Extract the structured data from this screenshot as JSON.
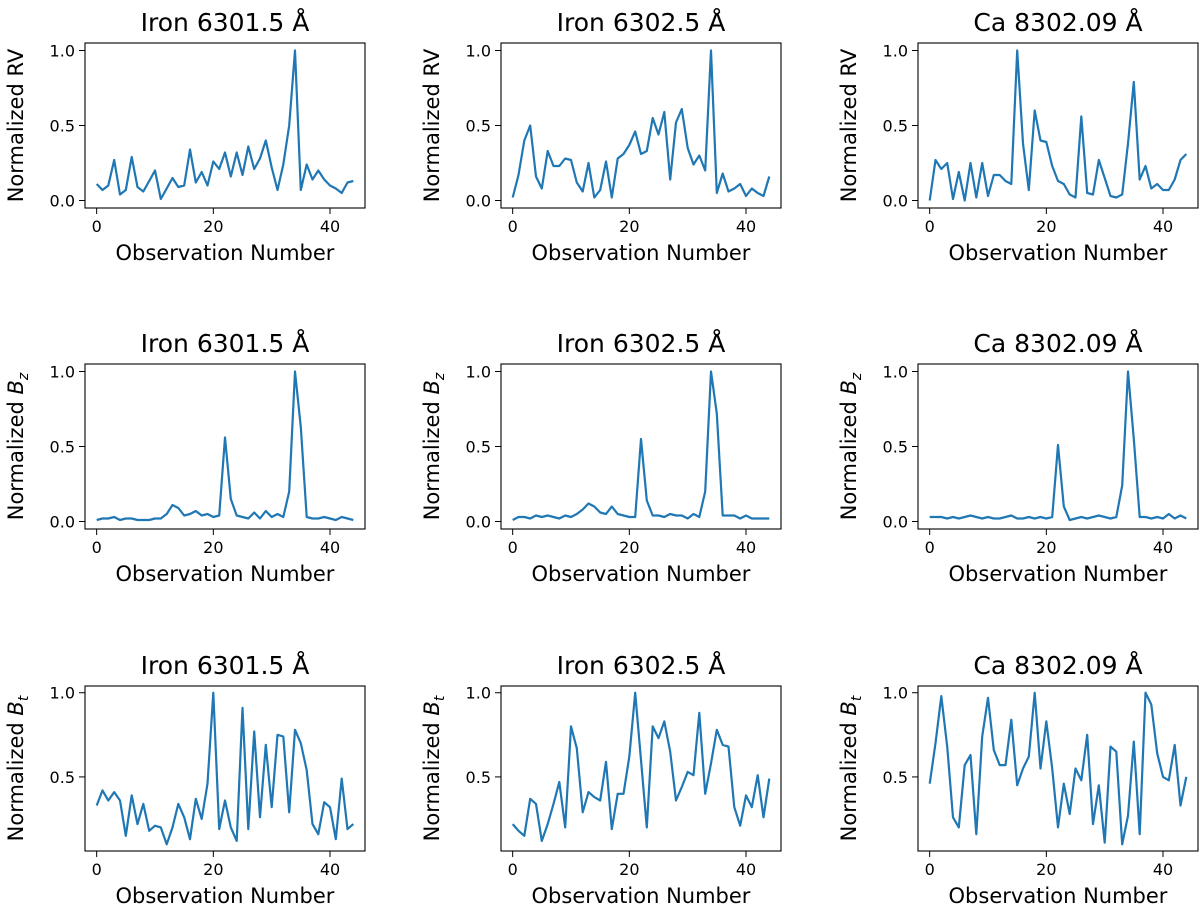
{
  "figure": {
    "line_color": "#1f77b4",
    "x_label": "Observation Number",
    "row_ylabels": [
      {
        "prefix": "Normalized ",
        "symbol": "",
        "sub": "",
        "plain": "RV"
      },
      {
        "prefix": "Normalized ",
        "symbol": "B",
        "sub": "z",
        "plain": ""
      },
      {
        "prefix": "Normalized ",
        "symbol": "B",
        "sub": "t",
        "plain": ""
      }
    ]
  },
  "chart_data": [
    {
      "type": "line",
      "title": "Iron 6301.5 Å",
      "xlabel": "Observation Number",
      "ylabel": "Normalized RV",
      "xlim": [
        -2,
        46
      ],
      "ylim": [
        -0.05,
        1.05
      ],
      "xticks": [
        0,
        20,
        40
      ],
      "yticks": [
        0.0,
        0.5,
        1.0
      ],
      "ytick_labels": [
        "0.0",
        "0.5",
        "1.0"
      ],
      "x": [
        0,
        1,
        2,
        3,
        4,
        5,
        6,
        7,
        8,
        9,
        10,
        11,
        12,
        13,
        14,
        15,
        16,
        17,
        18,
        19,
        20,
        21,
        22,
        23,
        24,
        25,
        26,
        27,
        28,
        29,
        30,
        31,
        32,
        33,
        34,
        35,
        36,
        37,
        38,
        39,
        40,
        41,
        42,
        43,
        44
      ],
      "values": [
        0.11,
        0.07,
        0.1,
        0.27,
        0.04,
        0.07,
        0.29,
        0.09,
        0.06,
        0.13,
        0.2,
        0.01,
        0.08,
        0.15,
        0.09,
        0.1,
        0.34,
        0.12,
        0.19,
        0.1,
        0.26,
        0.21,
        0.32,
        0.16,
        0.32,
        0.17,
        0.36,
        0.21,
        0.28,
        0.4,
        0.22,
        0.07,
        0.24,
        0.5,
        1.0,
        0.07,
        0.24,
        0.14,
        0.2,
        0.14,
        0.1,
        0.08,
        0.05,
        0.12,
        0.13
      ]
    },
    {
      "type": "line",
      "title": "Iron 6302.5 Å",
      "xlabel": "Observation Number",
      "ylabel": "Normalized RV",
      "xlim": [
        -2,
        46
      ],
      "ylim": [
        -0.05,
        1.05
      ],
      "xticks": [
        0,
        20,
        40
      ],
      "yticks": [
        0.0,
        0.5,
        1.0
      ],
      "ytick_labels": [
        "0.0",
        "0.5",
        "1.0"
      ],
      "x": [
        0,
        1,
        2,
        3,
        4,
        5,
        6,
        7,
        8,
        9,
        10,
        11,
        12,
        13,
        14,
        15,
        16,
        17,
        18,
        19,
        20,
        21,
        22,
        23,
        24,
        25,
        26,
        27,
        28,
        29,
        30,
        31,
        32,
        33,
        34,
        35,
        36,
        37,
        38,
        39,
        40,
        41,
        42,
        43,
        44
      ],
      "values": [
        0.02,
        0.17,
        0.4,
        0.5,
        0.16,
        0.08,
        0.33,
        0.23,
        0.23,
        0.28,
        0.27,
        0.12,
        0.06,
        0.25,
        0.02,
        0.07,
        0.26,
        0.02,
        0.28,
        0.31,
        0.37,
        0.46,
        0.31,
        0.33,
        0.55,
        0.44,
        0.59,
        0.14,
        0.52,
        0.61,
        0.35,
        0.24,
        0.3,
        0.2,
        1.0,
        0.05,
        0.18,
        0.06,
        0.08,
        0.11,
        0.03,
        0.08,
        0.05,
        0.03,
        0.16
      ]
    },
    {
      "type": "line",
      "title": "Ca 8302.09 Å",
      "xlabel": "Observation Number",
      "ylabel": "Normalized RV",
      "xlim": [
        -2,
        46
      ],
      "ylim": [
        -0.05,
        1.05
      ],
      "xticks": [
        0,
        20,
        40
      ],
      "yticks": [
        0.0,
        0.5,
        1.0
      ],
      "ytick_labels": [
        "0.0",
        "0.5",
        "1.0"
      ],
      "x": [
        0,
        1,
        2,
        3,
        4,
        5,
        6,
        7,
        8,
        9,
        10,
        11,
        12,
        13,
        14,
        15,
        16,
        17,
        18,
        19,
        20,
        21,
        22,
        23,
        24,
        25,
        26,
        27,
        28,
        29,
        30,
        31,
        32,
        33,
        34,
        35,
        36,
        37,
        38,
        39,
        40,
        41,
        42,
        43,
        44
      ],
      "values": [
        0.0,
        0.27,
        0.21,
        0.25,
        0.01,
        0.19,
        0.0,
        0.25,
        0.02,
        0.25,
        0.03,
        0.17,
        0.17,
        0.13,
        0.11,
        1.0,
        0.38,
        0.07,
        0.6,
        0.4,
        0.39,
        0.23,
        0.13,
        0.11,
        0.04,
        0.02,
        0.56,
        0.05,
        0.04,
        0.27,
        0.15,
        0.03,
        0.02,
        0.04,
        0.38,
        0.79,
        0.14,
        0.23,
        0.08,
        0.11,
        0.07,
        0.07,
        0.14,
        0.27,
        0.31
      ]
    },
    {
      "type": "line",
      "title": "Iron 6301.5 Å",
      "xlabel": "Observation Number",
      "ylabel": "Normalized Bz",
      "xlim": [
        -2,
        46
      ],
      "ylim": [
        -0.05,
        1.05
      ],
      "xticks": [
        0,
        20,
        40
      ],
      "yticks": [
        0.0,
        0.5,
        1.0
      ],
      "ytick_labels": [
        "0.0",
        "0.5",
        "1.0"
      ],
      "x": [
        0,
        1,
        2,
        3,
        4,
        5,
        6,
        7,
        8,
        9,
        10,
        11,
        12,
        13,
        14,
        15,
        16,
        17,
        18,
        19,
        20,
        21,
        22,
        23,
        24,
        25,
        26,
        27,
        28,
        29,
        30,
        31,
        32,
        33,
        34,
        35,
        36,
        37,
        38,
        39,
        40,
        41,
        42,
        43,
        44
      ],
      "values": [
        0.01,
        0.02,
        0.02,
        0.03,
        0.01,
        0.02,
        0.02,
        0.01,
        0.01,
        0.01,
        0.02,
        0.02,
        0.05,
        0.11,
        0.09,
        0.04,
        0.05,
        0.07,
        0.04,
        0.05,
        0.03,
        0.04,
        0.56,
        0.15,
        0.04,
        0.03,
        0.02,
        0.06,
        0.02,
        0.07,
        0.03,
        0.05,
        0.03,
        0.2,
        1.0,
        0.63,
        0.03,
        0.02,
        0.02,
        0.03,
        0.02,
        0.01,
        0.03,
        0.02,
        0.01
      ]
    },
    {
      "type": "line",
      "title": "Iron 6302.5 Å",
      "xlabel": "Observation Number",
      "ylabel": "Normalized Bz",
      "xlim": [
        -2,
        46
      ],
      "ylim": [
        -0.05,
        1.05
      ],
      "xticks": [
        0,
        20,
        40
      ],
      "yticks": [
        0.0,
        0.5,
        1.0
      ],
      "ytick_labels": [
        "0.0",
        "0.5",
        "1.0"
      ],
      "x": [
        0,
        1,
        2,
        3,
        4,
        5,
        6,
        7,
        8,
        9,
        10,
        11,
        12,
        13,
        14,
        15,
        16,
        17,
        18,
        19,
        20,
        21,
        22,
        23,
        24,
        25,
        26,
        27,
        28,
        29,
        30,
        31,
        32,
        33,
        34,
        35,
        36,
        37,
        38,
        39,
        40,
        41,
        42,
        43,
        44
      ],
      "values": [
        0.01,
        0.03,
        0.03,
        0.02,
        0.04,
        0.03,
        0.04,
        0.03,
        0.02,
        0.04,
        0.03,
        0.05,
        0.08,
        0.12,
        0.1,
        0.06,
        0.05,
        0.1,
        0.05,
        0.04,
        0.03,
        0.03,
        0.55,
        0.14,
        0.04,
        0.04,
        0.03,
        0.05,
        0.04,
        0.04,
        0.02,
        0.05,
        0.03,
        0.2,
        1.0,
        0.72,
        0.04,
        0.04,
        0.04,
        0.02,
        0.04,
        0.02,
        0.02,
        0.02,
        0.02
      ]
    },
    {
      "type": "line",
      "title": "Ca 8302.09 Å",
      "xlabel": "Observation Number",
      "ylabel": "Normalized Bz",
      "xlim": [
        -2,
        46
      ],
      "ylim": [
        -0.05,
        1.05
      ],
      "xticks": [
        0,
        20,
        40
      ],
      "yticks": [
        0.0,
        0.5,
        1.0
      ],
      "ytick_labels": [
        "0.0",
        "0.5",
        "1.0"
      ],
      "x": [
        0,
        1,
        2,
        3,
        4,
        5,
        6,
        7,
        8,
        9,
        10,
        11,
        12,
        13,
        14,
        15,
        16,
        17,
        18,
        19,
        20,
        21,
        22,
        23,
        24,
        25,
        26,
        27,
        28,
        29,
        30,
        31,
        32,
        33,
        34,
        35,
        36,
        37,
        38,
        39,
        40,
        41,
        42,
        43,
        44
      ],
      "values": [
        0.03,
        0.03,
        0.03,
        0.02,
        0.03,
        0.02,
        0.03,
        0.04,
        0.03,
        0.02,
        0.03,
        0.02,
        0.02,
        0.03,
        0.04,
        0.02,
        0.02,
        0.03,
        0.02,
        0.03,
        0.02,
        0.03,
        0.51,
        0.1,
        0.01,
        0.02,
        0.03,
        0.02,
        0.03,
        0.04,
        0.03,
        0.02,
        0.03,
        0.24,
        1.0,
        0.55,
        0.03,
        0.03,
        0.02,
        0.03,
        0.02,
        0.05,
        0.02,
        0.04,
        0.02
      ]
    },
    {
      "type": "line",
      "title": "Iron 6301.5 Å",
      "xlabel": "Observation Number",
      "ylabel": "Normalized Bt",
      "xlim": [
        -2,
        46
      ],
      "ylim": [
        0.06,
        1.04
      ],
      "xticks": [
        0,
        20,
        40
      ],
      "yticks": [
        0.5,
        1.0
      ],
      "ytick_labels": [
        "0.5",
        "1.0"
      ],
      "x": [
        0,
        1,
        2,
        3,
        4,
        5,
        6,
        7,
        8,
        9,
        10,
        11,
        12,
        13,
        14,
        15,
        16,
        17,
        18,
        19,
        20,
        21,
        22,
        23,
        24,
        25,
        26,
        27,
        28,
        29,
        30,
        31,
        32,
        33,
        34,
        35,
        36,
        37,
        38,
        39,
        40,
        41,
        42,
        43,
        44
      ],
      "values": [
        0.33,
        0.42,
        0.36,
        0.41,
        0.36,
        0.15,
        0.39,
        0.22,
        0.34,
        0.18,
        0.21,
        0.2,
        0.1,
        0.2,
        0.34,
        0.26,
        0.13,
        0.37,
        0.25,
        0.46,
        1.0,
        0.19,
        0.36,
        0.2,
        0.12,
        0.91,
        0.19,
        0.77,
        0.26,
        0.69,
        0.32,
        0.75,
        0.74,
        0.29,
        0.78,
        0.7,
        0.54,
        0.22,
        0.16,
        0.35,
        0.32,
        0.13,
        0.49,
        0.19,
        0.22
      ]
    },
    {
      "type": "line",
      "title": "Iron 6302.5 Å",
      "xlabel": "Observation Number",
      "ylabel": "Normalized Bt",
      "xlim": [
        -2,
        46
      ],
      "ylim": [
        0.06,
        1.04
      ],
      "xticks": [
        0,
        20,
        40
      ],
      "yticks": [
        0.5,
        1.0
      ],
      "ytick_labels": [
        "0.5",
        "1.0"
      ],
      "x": [
        0,
        1,
        2,
        3,
        4,
        5,
        6,
        7,
        8,
        9,
        10,
        11,
        12,
        13,
        14,
        15,
        16,
        17,
        18,
        19,
        20,
        21,
        22,
        23,
        24,
        25,
        26,
        27,
        28,
        29,
        30,
        31,
        32,
        33,
        34,
        35,
        36,
        37,
        38,
        39,
        40,
        41,
        42,
        43,
        44
      ],
      "values": [
        0.22,
        0.18,
        0.15,
        0.37,
        0.34,
        0.12,
        0.22,
        0.34,
        0.47,
        0.2,
        0.8,
        0.67,
        0.29,
        0.41,
        0.38,
        0.36,
        0.59,
        0.19,
        0.4,
        0.4,
        0.62,
        1.0,
        0.6,
        0.2,
        0.8,
        0.73,
        0.83,
        0.65,
        0.36,
        0.44,
        0.53,
        0.51,
        0.88,
        0.4,
        0.58,
        0.78,
        0.69,
        0.68,
        0.32,
        0.21,
        0.39,
        0.32,
        0.51,
        0.26,
        0.49
      ]
    },
    {
      "type": "line",
      "title": "Ca 8302.09 Å",
      "xlabel": "Observation Number",
      "ylabel": "Normalized Bt",
      "xlim": [
        -2,
        46
      ],
      "ylim": [
        0.06,
        1.04
      ],
      "xticks": [
        0,
        20,
        40
      ],
      "yticks": [
        0.5,
        1.0
      ],
      "ytick_labels": [
        "0.5",
        "1.0"
      ],
      "x": [
        0,
        1,
        2,
        3,
        4,
        5,
        6,
        7,
        8,
        9,
        10,
        11,
        12,
        13,
        14,
        15,
        16,
        17,
        18,
        19,
        20,
        21,
        22,
        23,
        24,
        25,
        26,
        27,
        28,
        29,
        30,
        31,
        32,
        33,
        34,
        35,
        36,
        37,
        38,
        39,
        40,
        41,
        42,
        43,
        44
      ],
      "values": [
        0.46,
        0.7,
        0.98,
        0.68,
        0.26,
        0.2,
        0.57,
        0.63,
        0.16,
        0.74,
        0.97,
        0.66,
        0.57,
        0.57,
        0.84,
        0.45,
        0.55,
        0.62,
        1.0,
        0.55,
        0.83,
        0.55,
        0.2,
        0.46,
        0.28,
        0.55,
        0.48,
        0.75,
        0.22,
        0.45,
        0.11,
        0.68,
        0.65,
        0.1,
        0.27,
        0.71,
        0.16,
        1.0,
        0.93,
        0.64,
        0.5,
        0.48,
        0.69,
        0.33,
        0.5
      ]
    }
  ]
}
